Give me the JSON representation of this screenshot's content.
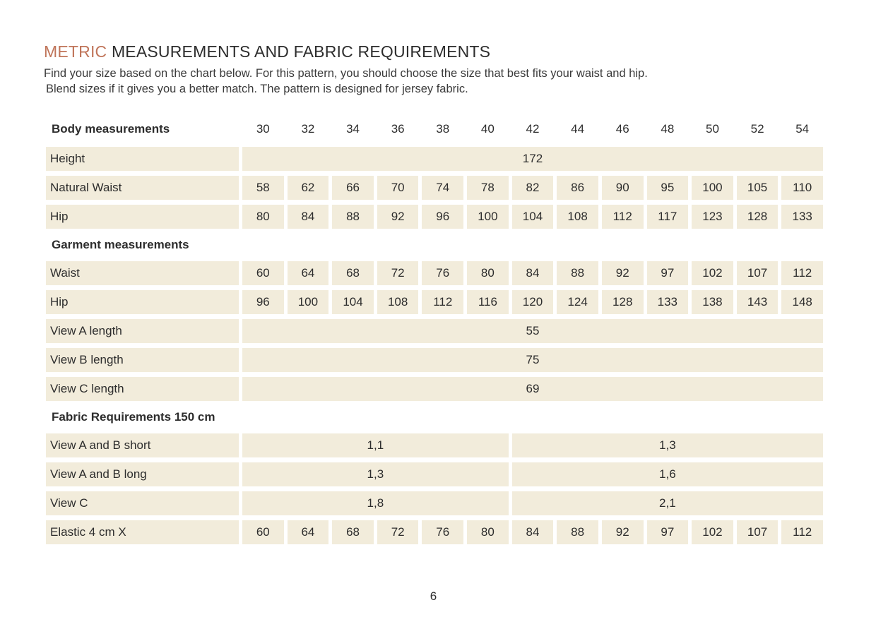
{
  "page": {
    "title_accent": "METRIC",
    "title_rest": " MEASUREMENTS AND FABRIC REQUIREMENTS",
    "subtitle_line1": "Find your size based on the chart below. For this pattern, you should choose the size that best fits your waist and hip.",
    "subtitle_line2": "Blend sizes if it gives you a better match.  The pattern is designed for jersey fabric.",
    "page_number": "6"
  },
  "colors": {
    "accent": "#c0755a",
    "cell_background": "#f2ecdb",
    "text": "#2d2d2d"
  },
  "table": {
    "header_label": "Body measurements",
    "sizes": [
      "30",
      "32",
      "34",
      "36",
      "38",
      "40",
      "42",
      "44",
      "46",
      "48",
      "50",
      "52",
      "54"
    ],
    "rows": [
      {
        "type": "span",
        "label": "Height",
        "value": "172"
      },
      {
        "type": "cells",
        "label": "Natural Waist",
        "values": [
          "58",
          "62",
          "66",
          "70",
          "74",
          "78",
          "82",
          "86",
          "90",
          "95",
          "100",
          "105",
          "110"
        ]
      },
      {
        "type": "cells",
        "label": "Hip",
        "values": [
          "80",
          "84",
          "88",
          "92",
          "96",
          "100",
          "104",
          "108",
          "112",
          "117",
          "123",
          "128",
          "133"
        ]
      },
      {
        "type": "section",
        "label": "Garment measurements"
      },
      {
        "type": "cells",
        "label": "Waist",
        "values": [
          "60",
          "64",
          "68",
          "72",
          "76",
          "80",
          "84",
          "88",
          "92",
          "97",
          "102",
          "107",
          "112"
        ]
      },
      {
        "type": "cells",
        "label": "Hip",
        "values": [
          "96",
          "100",
          "104",
          "108",
          "112",
          "116",
          "120",
          "124",
          "128",
          "133",
          "138",
          "143",
          "148"
        ]
      },
      {
        "type": "span",
        "label": "View A length",
        "value": "55"
      },
      {
        "type": "span",
        "label": "View B length",
        "value": "75"
      },
      {
        "type": "span",
        "label": "View C length",
        "value": "69"
      },
      {
        "type": "section",
        "label": "Fabric Requirements 150 cm"
      },
      {
        "type": "split",
        "label": "View A and B  short",
        "left": "1,1",
        "right": "1,3"
      },
      {
        "type": "split",
        "label": "View A and B long",
        "left": "1,3",
        "right": "1,6"
      },
      {
        "type": "split",
        "label": "View C",
        "left": "1,8",
        "right": "2,1"
      },
      {
        "type": "cells",
        "label": "Elastic 4 cm X",
        "values": [
          "60",
          "64",
          "68",
          "72",
          "76",
          "80",
          "84",
          "88",
          "92",
          "97",
          "102",
          "107",
          "112"
        ]
      }
    ]
  }
}
